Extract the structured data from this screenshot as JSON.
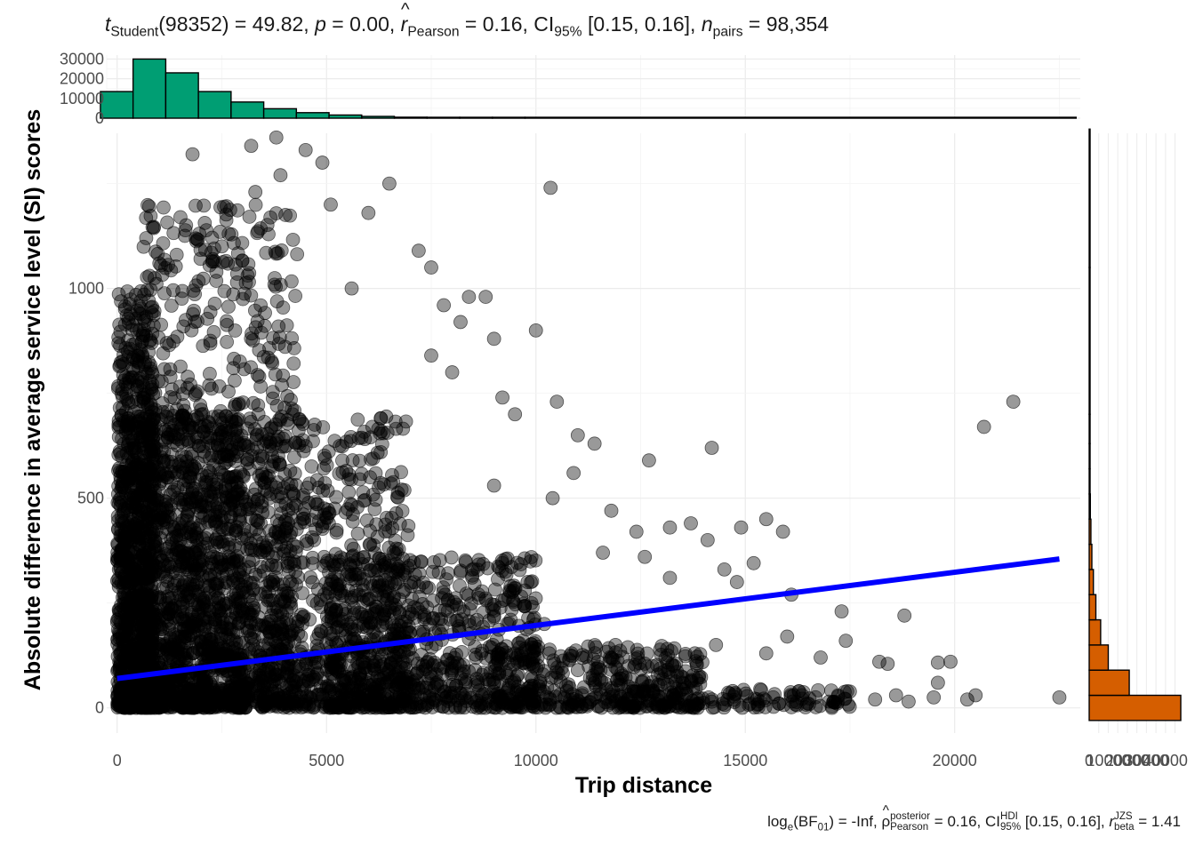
{
  "subtitle": {
    "t_sym": "t",
    "t_sub": "Student",
    "t_val": "(98352) = 49.82, ",
    "p_sym": "p",
    "p_val": " = 0.00, ",
    "r_sym": "r",
    "r_sub": "Pearson",
    "r_val": " = 0.16, CI",
    "ci_sub": "95%",
    "ci_val": " [0.15, 0.16], ",
    "n_sym": "n",
    "n_sub": "pairs",
    "n_val": " = 98,354"
  },
  "caption": {
    "log": "log",
    "log_sub": "e",
    "bf": "(BF",
    "bf_sub": "01",
    "bf_val": ") = -Inf, ",
    "rho": "ρ",
    "rho_sup": "posterior",
    "rho_sub": "Pearson",
    "rho_val": " = 0.16, CI",
    "hdi_sup": "HDI",
    "hdi_sub": "95%",
    "hdi_val": " [0.15, 0.16], ",
    "r_sym": "r",
    "r_sup": "JZS",
    "r_sub": "beta",
    "r_val": " = 1.41"
  },
  "chart_data": {
    "type": "scatter",
    "xlabel": "Trip distance",
    "ylabel": "Absolute difference in average service level (SI) scores",
    "xlim": [
      -250,
      23000
    ],
    "ylim": [
      -60,
      1370
    ],
    "x_ticks": [
      "0",
      "5000",
      "10000",
      "15000",
      "20000"
    ],
    "y_ticks": [
      "0",
      "500",
      "1000"
    ],
    "grid": true,
    "point_color": "#000000",
    "point_alpha": 0.4,
    "regression_line": {
      "color": "#0000ff",
      "x": [
        0,
        22500
      ],
      "y": [
        70,
        355
      ]
    },
    "points_sample": [
      {
        "x": 3800,
        "y": 1360
      },
      {
        "x": 3200,
        "y": 1340
      },
      {
        "x": 4500,
        "y": 1330
      },
      {
        "x": 1800,
        "y": 1320
      },
      {
        "x": 4900,
        "y": 1300
      },
      {
        "x": 3900,
        "y": 1270
      },
      {
        "x": 6500,
        "y": 1250
      },
      {
        "x": 10350,
        "y": 1240
      },
      {
        "x": 3300,
        "y": 1230
      },
      {
        "x": 5100,
        "y": 1200
      },
      {
        "x": 6000,
        "y": 1180
      },
      {
        "x": 7200,
        "y": 1090
      },
      {
        "x": 7500,
        "y": 1050
      },
      {
        "x": 5600,
        "y": 1000
      },
      {
        "x": 8400,
        "y": 980
      },
      {
        "x": 8800,
        "y": 980
      },
      {
        "x": 7800,
        "y": 960
      },
      {
        "x": 10000,
        "y": 900
      },
      {
        "x": 8200,
        "y": 920
      },
      {
        "x": 9000,
        "y": 880
      },
      {
        "x": 7500,
        "y": 840
      },
      {
        "x": 8000,
        "y": 800
      },
      {
        "x": 9200,
        "y": 740
      },
      {
        "x": 10500,
        "y": 730
      },
      {
        "x": 9500,
        "y": 700
      },
      {
        "x": 11000,
        "y": 650
      },
      {
        "x": 11400,
        "y": 630
      },
      {
        "x": 14200,
        "y": 620
      },
      {
        "x": 12700,
        "y": 590
      },
      {
        "x": 10900,
        "y": 560
      },
      {
        "x": 9000,
        "y": 530
      },
      {
        "x": 10400,
        "y": 500
      },
      {
        "x": 11800,
        "y": 470
      },
      {
        "x": 13200,
        "y": 430
      },
      {
        "x": 12400,
        "y": 420
      },
      {
        "x": 15500,
        "y": 450
      },
      {
        "x": 13700,
        "y": 440
      },
      {
        "x": 14900,
        "y": 430
      },
      {
        "x": 15900,
        "y": 420
      },
      {
        "x": 14100,
        "y": 400
      },
      {
        "x": 11600,
        "y": 370
      },
      {
        "x": 12600,
        "y": 360
      },
      {
        "x": 14500,
        "y": 330
      },
      {
        "x": 15200,
        "y": 345
      },
      {
        "x": 13200,
        "y": 310
      },
      {
        "x": 14800,
        "y": 300
      },
      {
        "x": 16100,
        "y": 270
      },
      {
        "x": 17300,
        "y": 230
      },
      {
        "x": 18800,
        "y": 220
      },
      {
        "x": 16000,
        "y": 170
      },
      {
        "x": 17400,
        "y": 160
      },
      {
        "x": 14300,
        "y": 150
      },
      {
        "x": 15500,
        "y": 130
      },
      {
        "x": 16800,
        "y": 120
      },
      {
        "x": 18200,
        "y": 110
      },
      {
        "x": 18400,
        "y": 105
      },
      {
        "x": 19600,
        "y": 108
      },
      {
        "x": 19900,
        "y": 110
      },
      {
        "x": 19600,
        "y": 60
      },
      {
        "x": 20700,
        "y": 670
      },
      {
        "x": 21400,
        "y": 730
      },
      {
        "x": 22500,
        "y": 25
      },
      {
        "x": 18600,
        "y": 30
      },
      {
        "x": 19500,
        "y": 25
      },
      {
        "x": 18100,
        "y": 20
      },
      {
        "x": 17000,
        "y": 15
      },
      {
        "x": 15800,
        "y": 10
      },
      {
        "x": 16200,
        "y": 8
      },
      {
        "x": 14000,
        "y": 12
      },
      {
        "x": 12800,
        "y": 40
      },
      {
        "x": 13500,
        "y": 60
      },
      {
        "x": 14700,
        "y": 40
      },
      {
        "x": 20300,
        "y": 20
      },
      {
        "x": 20500,
        "y": 30
      },
      {
        "x": 18900,
        "y": 15
      },
      {
        "x": 12200,
        "y": 20
      },
      {
        "x": 11000,
        "y": 90
      },
      {
        "x": 11900,
        "y": 150
      },
      {
        "x": 10200,
        "y": 200
      },
      {
        "x": 9800,
        "y": 300
      }
    ],
    "density_clusters": [
      {
        "xmin": 0,
        "xmax": 900,
        "ymin": 0,
        "ymax": 1000,
        "n": 700
      },
      {
        "xmin": 0,
        "xmax": 3000,
        "ymin": 0,
        "ymax": 700,
        "n": 1300
      },
      {
        "xmin": 600,
        "xmax": 4300,
        "ymin": 0,
        "ymax": 1200,
        "n": 900
      },
      {
        "xmin": 3000,
        "xmax": 7000,
        "ymin": 0,
        "ymax": 700,
        "n": 800
      },
      {
        "xmin": 5000,
        "xmax": 10000,
        "ymin": 0,
        "ymax": 360,
        "n": 700
      },
      {
        "xmin": 9000,
        "xmax": 14000,
        "ymin": 0,
        "ymax": 150,
        "n": 350
      },
      {
        "xmin": 12000,
        "xmax": 17500,
        "ymin": 0,
        "ymax": 50,
        "n": 140
      }
    ],
    "marginal_x": {
      "type": "histogram",
      "color": "#009e73",
      "y_ticks": [
        "0",
        "10000",
        "20000",
        "30000"
      ],
      "bins": [
        {
          "from": -400,
          "to": 380,
          "count": 13500
        },
        {
          "from": 380,
          "to": 1160,
          "count": 30000
        },
        {
          "from": 1160,
          "to": 1940,
          "count": 23000
        },
        {
          "from": 1940,
          "to": 2720,
          "count": 13500
        },
        {
          "from": 2720,
          "to": 3500,
          "count": 8200
        },
        {
          "from": 3500,
          "to": 4280,
          "count": 4800
        },
        {
          "from": 4280,
          "to": 5060,
          "count": 2800
        },
        {
          "from": 5060,
          "to": 5840,
          "count": 1600
        },
        {
          "from": 5840,
          "to": 6620,
          "count": 900
        },
        {
          "from": 6620,
          "to": 7400,
          "count": 500
        },
        {
          "from": 7400,
          "to": 8180,
          "count": 300
        },
        {
          "from": 8180,
          "to": 8960,
          "count": 180
        },
        {
          "from": 8960,
          "to": 9740,
          "count": 100
        },
        {
          "from": 9740,
          "to": 22900,
          "count": 40
        }
      ]
    },
    "marginal_y": {
      "type": "histogram",
      "color": "#d55e00",
      "bins": [
        {
          "from": -30,
          "to": 30,
          "count": 48000
        },
        {
          "from": 30,
          "to": 90,
          "count": 21000
        },
        {
          "from": 90,
          "to": 150,
          "count": 10000
        },
        {
          "from": 150,
          "to": 210,
          "count": 6000
        },
        {
          "from": 210,
          "to": 270,
          "count": 3500
        },
        {
          "from": 270,
          "to": 330,
          "count": 2200
        },
        {
          "from": 330,
          "to": 390,
          "count": 1400
        },
        {
          "from": 390,
          "to": 450,
          "count": 900
        },
        {
          "from": 450,
          "to": 510,
          "count": 600
        },
        {
          "from": 510,
          "to": 570,
          "count": 400
        },
        {
          "from": 570,
          "to": 630,
          "count": 250
        },
        {
          "from": 630,
          "to": 700,
          "count": 150
        },
        {
          "from": 700,
          "to": 1050,
          "count": 120
        },
        {
          "from": 1050,
          "to": 1380,
          "count": 40
        }
      ]
    }
  }
}
